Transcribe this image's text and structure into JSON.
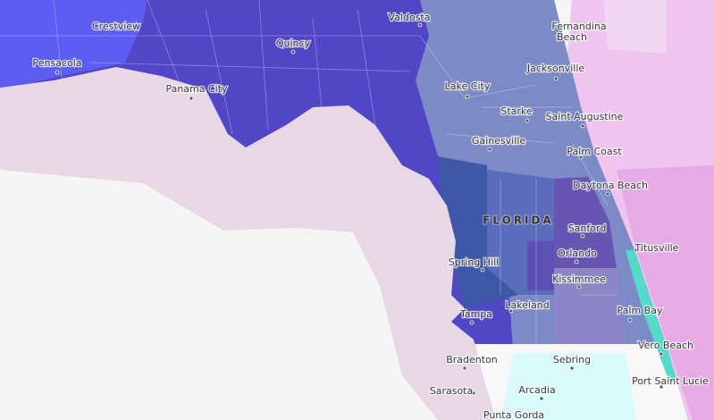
{
  "state_label": "FLORIDA",
  "cities": [
    "Crestview",
    "Pensacola",
    "Valdosta",
    "Quincy",
    "Panama City",
    "Fernandina",
    "Beach",
    "Jacksonville",
    "Lake City",
    "Starke",
    "Saint Augustine",
    "Gainesville",
    "Palm Coast",
    "Daytona Beach",
    "Sanford",
    "Titusville",
    "Orlando",
    "Spring Hill",
    "Kissimmee",
    "Palm Bay",
    "Tampa",
    "Lakeland",
    "Vero Beach",
    "Bradenton",
    "Sebring",
    "Port Saint Lucie",
    "Sarasota",
    "Arcadia",
    "Punta Gorda"
  ]
}
